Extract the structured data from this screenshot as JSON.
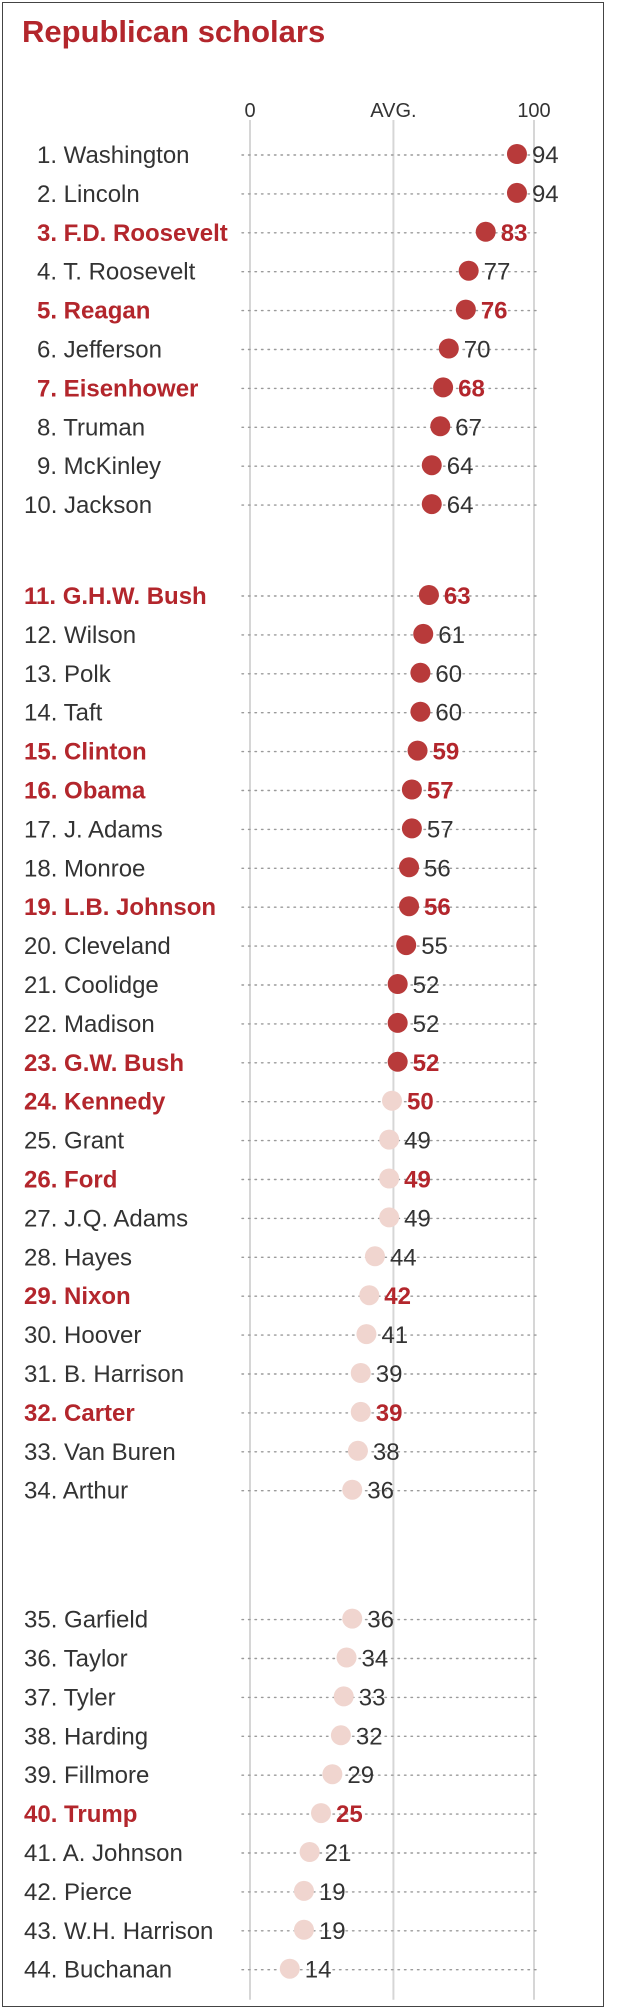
{
  "chart_data": {
    "type": "scatter",
    "title": "Republican scholars",
    "x_ticks": [
      "0",
      "AVG.",
      "100"
    ],
    "xlim": [
      0,
      100
    ],
    "avg": 50.5,
    "colors": {
      "above_avg": "#b83a3a",
      "below_avg": "#f0d5cf",
      "republican_label": "#b3262c",
      "label": "#333333"
    },
    "rows": [
      {
        "rank": "1.",
        "name": "Washington",
        "value": 94,
        "republican": false
      },
      {
        "rank": "2.",
        "name": "Lincoln",
        "value": 94,
        "republican": false
      },
      {
        "rank": "3.",
        "name": "F.D. Roosevelt",
        "value": 83,
        "republican": true
      },
      {
        "rank": "4.",
        "name": "T. Roosevelt",
        "value": 77,
        "republican": false
      },
      {
        "rank": "5.",
        "name": "Reagan",
        "value": 76,
        "republican": true
      },
      {
        "rank": "6.",
        "name": "Jefferson",
        "value": 70,
        "republican": false
      },
      {
        "rank": "7.",
        "name": "Eisenhower",
        "value": 68,
        "republican": true
      },
      {
        "rank": "8.",
        "name": "Truman",
        "value": 67,
        "republican": false
      },
      {
        "rank": "9.",
        "name": "McKinley",
        "value": 64,
        "republican": false
      },
      {
        "rank": "10.",
        "name": "Jackson",
        "value": 64,
        "republican": false
      },
      {
        "rank": "11.",
        "name": "G.H.W. Bush",
        "value": 63,
        "republican": true
      },
      {
        "rank": "12.",
        "name": "Wilson",
        "value": 61,
        "republican": false
      },
      {
        "rank": "13.",
        "name": "Polk",
        "value": 60,
        "republican": false
      },
      {
        "rank": "14.",
        "name": "Taft",
        "value": 60,
        "republican": false
      },
      {
        "rank": "15.",
        "name": "Clinton",
        "value": 59,
        "republican": true
      },
      {
        "rank": "16.",
        "name": "Obama",
        "value": 57,
        "republican": true
      },
      {
        "rank": "17.",
        "name": "J. Adams",
        "value": 57,
        "republican": false
      },
      {
        "rank": "18.",
        "name": "Monroe",
        "value": 56,
        "republican": false
      },
      {
        "rank": "19.",
        "name": "L.B. Johnson",
        "value": 56,
        "republican": true
      },
      {
        "rank": "20.",
        "name": "Cleveland",
        "value": 55,
        "republican": false
      },
      {
        "rank": "21.",
        "name": "Coolidge",
        "value": 52,
        "republican": false
      },
      {
        "rank": "22.",
        "name": "Madison",
        "value": 52,
        "republican": false
      },
      {
        "rank": "23.",
        "name": "G.W. Bush",
        "value": 52,
        "republican": true
      },
      {
        "rank": "24.",
        "name": "Kennedy",
        "value": 50,
        "republican": true
      },
      {
        "rank": "25.",
        "name": "Grant",
        "value": 49,
        "republican": false
      },
      {
        "rank": "26.",
        "name": "Ford",
        "value": 49,
        "republican": true
      },
      {
        "rank": "27.",
        "name": "J.Q. Adams",
        "value": 49,
        "republican": false
      },
      {
        "rank": "28.",
        "name": "Hayes",
        "value": 44,
        "republican": false
      },
      {
        "rank": "29.",
        "name": "Nixon",
        "value": 42,
        "republican": true
      },
      {
        "rank": "30.",
        "name": "Hoover",
        "value": 41,
        "republican": false
      },
      {
        "rank": "31.",
        "name": "B. Harrison",
        "value": 39,
        "republican": false
      },
      {
        "rank": "32.",
        "name": "Carter",
        "value": 39,
        "republican": true
      },
      {
        "rank": "33.",
        "name": "Van Buren",
        "value": 38,
        "republican": false
      },
      {
        "rank": "34.",
        "name": "Arthur",
        "value": 36,
        "republican": false
      },
      {
        "rank": "35.",
        "name": "Garfield",
        "value": 36,
        "republican": false
      },
      {
        "rank": "36.",
        "name": "Taylor",
        "value": 34,
        "republican": false
      },
      {
        "rank": "37.",
        "name": "Tyler",
        "value": 33,
        "republican": false
      },
      {
        "rank": "38.",
        "name": "Harding",
        "value": 32,
        "republican": false
      },
      {
        "rank": "39.",
        "name": "Fillmore",
        "value": 29,
        "republican": false
      },
      {
        "rank": "40.",
        "name": "Trump",
        "value": 25,
        "republican": true
      },
      {
        "rank": "41.",
        "name": "A. Johnson",
        "value": 21,
        "republican": false
      },
      {
        "rank": "42.",
        "name": "Pierce",
        "value": 19,
        "republican": false
      },
      {
        "rank": "43.",
        "name": "W.H. Harrison",
        "value": 19,
        "republican": false
      },
      {
        "rank": "44.",
        "name": "Buchanan",
        "value": 14,
        "republican": false
      }
    ]
  }
}
